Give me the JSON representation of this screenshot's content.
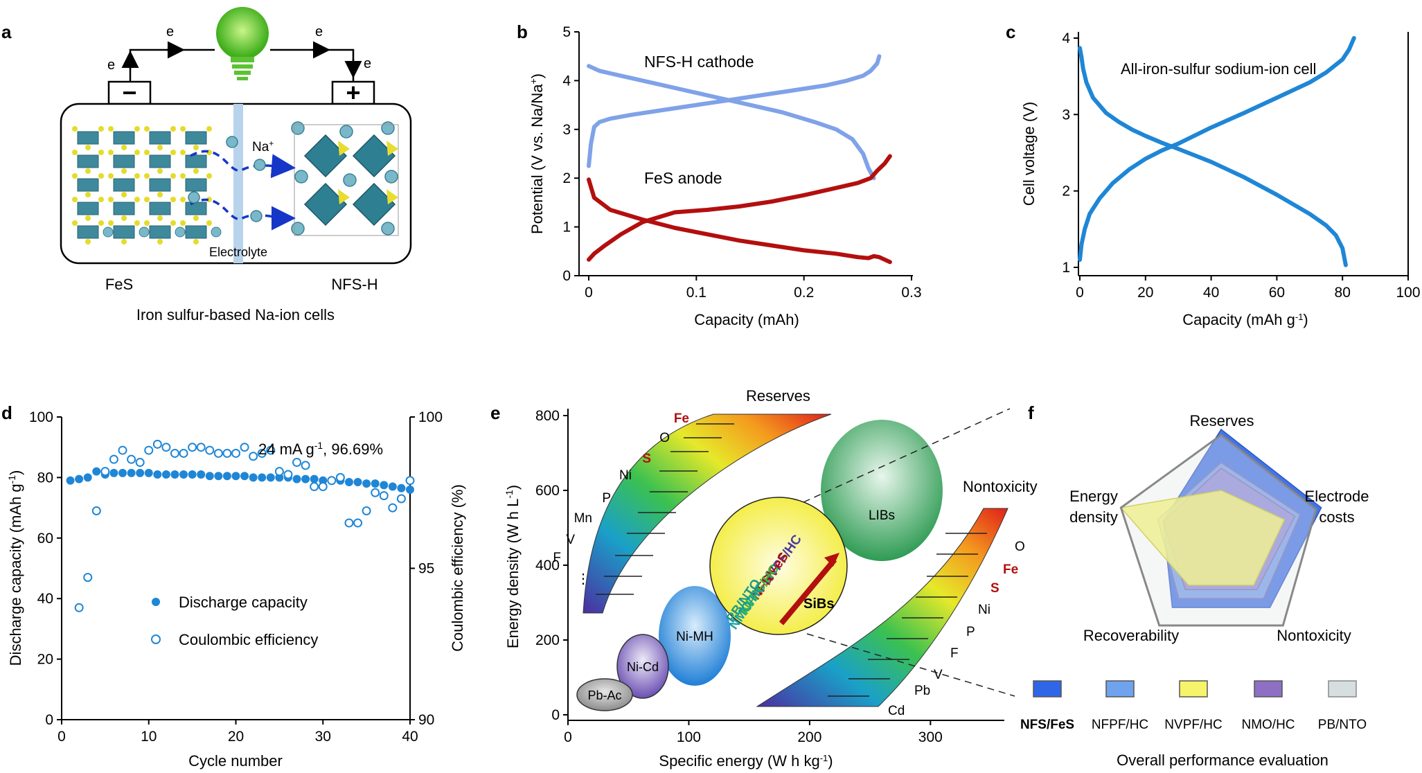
{
  "colors": {
    "cathode": "#7fa2e8",
    "anode": "#b30f0f",
    "cell": "#1f86d6",
    "discharge": "#1f86d6",
    "title_red": "#b30f0f"
  },
  "panel_a": {
    "label": "a",
    "electron": "e",
    "minus": "−",
    "plus": "+",
    "ion": "Na",
    "electrolyte": "Electrolyte",
    "left": "FeS",
    "right": "NFS-H",
    "caption": "Iron sulfur-based Na-ion cells"
  },
  "panel_b": {
    "label": "b",
    "cathode_label": "NFS-H cathode",
    "anode_label": "FeS anode"
  },
  "panel_c": {
    "label": "c",
    "title": "All-iron-sulfur sodium-ion cell"
  },
  "panel_d": {
    "label": "d",
    "annotation": "24 mA g",
    "annotation_sup": "-1",
    "annotation_rest": ", 96.69%",
    "legend_discharge": "Discharge capacity",
    "legend_ce": "Coulombic efficiency"
  },
  "panel_e": {
    "label": "e",
    "reserves": "Reserves",
    "nontoxicity": "Nontoxicity",
    "reserves_elements": [
      "Fe",
      "O",
      "S",
      "Ni",
      "P",
      "Mn",
      "V",
      "F"
    ],
    "reserves_ellipsis": "⋮",
    "toxicity_elements": [
      "O",
      "Fe",
      "S",
      "Ni",
      "P",
      "F",
      "V",
      "Pb",
      "Cd"
    ],
    "systems": [
      "LIBs",
      "Ni-MH",
      "Ni-Cd",
      "Pb-Ac"
    ],
    "sibs_label": "SiBs",
    "sibs_list": [
      "NVPF/HC",
      "NFS/FeS",
      "NFPF/HC",
      "NMO/HC",
      "PB/NTO"
    ]
  },
  "panel_f": {
    "label": "f",
    "axes": [
      "Reserves",
      "Electrode costs",
      "Nontoxicity",
      "Recoverability",
      "Energy density"
    ],
    "axis_energy_1": "Energy",
    "axis_energy_2": "density",
    "axis_cost_1": "Electrode",
    "axis_cost_2": "costs",
    "legend": [
      "NFS/FeS",
      "NFPF/HC",
      "NVPF/HC",
      "NMO/HC",
      "PB/NTO"
    ],
    "legend_colors": [
      "#2f66e8",
      "#6fa3ee",
      "#f6f46a",
      "#8d6fc4",
      "#d7dedf"
    ],
    "caption": "Overall performance evaluation"
  },
  "chart_data": [
    {
      "id": "b",
      "type": "line",
      "xlabel": "Capacity (mAh)",
      "ylabel": "Potential (V vs. Na/Na+)",
      "xlim": [
        0,
        0.3
      ],
      "ylim": [
        0,
        5
      ],
      "xticks": [
        "0",
        "0.1",
        "0.2",
        "0.3"
      ],
      "yticks": [
        "0",
        "1",
        "2",
        "3",
        "4",
        "5"
      ],
      "series": [
        {
          "name": "NFS-H cathode",
          "x": [
            0,
            0.002,
            0.005,
            0.01,
            0.02,
            0.04,
            0.07,
            0.1,
            0.13,
            0.16,
            0.19,
            0.22,
            0.24,
            0.255,
            0.262,
            0.268,
            0.27
          ],
          "y": [
            2.25,
            2.7,
            3.05,
            3.15,
            3.22,
            3.3,
            3.4,
            3.5,
            3.6,
            3.7,
            3.8,
            3.9,
            4.0,
            4.1,
            4.2,
            4.35,
            4.5
          ]
        },
        {
          "name": "NFS-H cathode",
          "x": [
            0,
            0.01,
            0.03,
            0.06,
            0.09,
            0.12,
            0.15,
            0.18,
            0.21,
            0.23,
            0.245,
            0.255,
            0.26,
            0.265
          ],
          "y": [
            4.3,
            4.2,
            4.1,
            3.95,
            3.8,
            3.65,
            3.5,
            3.35,
            3.15,
            3.0,
            2.8,
            2.5,
            2.2,
            2.0
          ]
        },
        {
          "name": "FeS anode",
          "x": [
            0,
            0.005,
            0.015,
            0.03,
            0.05,
            0.08,
            0.11,
            0.14,
            0.17,
            0.2,
            0.23,
            0.25,
            0.262,
            0.268,
            0.275,
            0.28
          ],
          "y": [
            0.33,
            0.45,
            0.62,
            0.85,
            1.1,
            1.3,
            1.35,
            1.42,
            1.52,
            1.65,
            1.8,
            1.9,
            2.0,
            2.15,
            2.3,
            2.45
          ]
        },
        {
          "name": "FeS anode",
          "x": [
            0,
            0.005,
            0.02,
            0.05,
            0.08,
            0.11,
            0.14,
            0.17,
            0.2,
            0.23,
            0.25,
            0.26,
            0.265,
            0.27,
            0.28
          ],
          "y": [
            1.97,
            1.6,
            1.35,
            1.15,
            0.98,
            0.85,
            0.72,
            0.62,
            0.52,
            0.45,
            0.38,
            0.36,
            0.4,
            0.38,
            0.28
          ]
        }
      ]
    },
    {
      "id": "c",
      "type": "line",
      "title": "All-iron-sulfur sodium-ion cell",
      "xlabel": "Capacity (mAh g-1)",
      "ylabel": "Cell voltage (V)",
      "xlim": [
        0,
        100
      ],
      "ylim": [
        0.9,
        4.1
      ],
      "xticks": [
        "0",
        "20",
        "40",
        "60",
        "80",
        "100"
      ],
      "yticks": [
        "1",
        "2",
        "3",
        "4"
      ],
      "series": [
        {
          "name": "charge",
          "x": [
            0,
            0.5,
            1.5,
            3,
            6,
            10,
            15,
            20,
            25,
            30,
            40,
            50,
            60,
            70,
            75,
            80,
            82,
            83.5
          ],
          "y": [
            1.1,
            1.3,
            1.5,
            1.7,
            1.9,
            2.1,
            2.28,
            2.42,
            2.53,
            2.62,
            2.83,
            3.02,
            3.22,
            3.42,
            3.55,
            3.72,
            3.85,
            4.0
          ]
        },
        {
          "name": "discharge",
          "x": [
            0,
            0.5,
            1,
            2,
            4,
            8,
            12,
            16,
            20,
            25,
            30,
            40,
            50,
            60,
            70,
            75,
            78,
            80,
            81
          ],
          "y": [
            3.87,
            3.75,
            3.6,
            3.42,
            3.22,
            3.02,
            2.9,
            2.8,
            2.72,
            2.63,
            2.55,
            2.38,
            2.18,
            1.95,
            1.7,
            1.55,
            1.42,
            1.25,
            1.03
          ]
        }
      ]
    },
    {
      "id": "d",
      "type": "scatter",
      "xlabel": "Cycle number",
      "ylabel": "Discharge capacity (mAh g-1)",
      "ylabel_right": "Coulombic efficiency (%)",
      "xlim": [
        0,
        40
      ],
      "ylim": [
        0,
        100
      ],
      "ylim_right": [
        90,
        100
      ],
      "xticks": [
        "0",
        "10",
        "20",
        "30",
        "40"
      ],
      "yticks": [
        "0",
        "20",
        "40",
        "60",
        "80",
        "100"
      ],
      "yticks_right": [
        "90",
        "95",
        "100"
      ],
      "series": [
        {
          "name": "Discharge capacity",
          "axis": "left",
          "x": [
            1,
            2,
            3,
            4,
            5,
            6,
            7,
            8,
            9,
            10,
            11,
            12,
            13,
            14,
            15,
            16,
            17,
            18,
            19,
            20,
            21,
            22,
            23,
            24,
            25,
            26,
            27,
            28,
            29,
            30,
            31,
            32,
            33,
            34,
            35,
            36,
            37,
            38,
            39,
            40
          ],
          "y": [
            79,
            79.5,
            80,
            82,
            81,
            81.5,
            81.5,
            81.5,
            81.5,
            81.5,
            81,
            81,
            81,
            81,
            81,
            81,
            80.5,
            80.5,
            80.5,
            80.5,
            80.5,
            80,
            80,
            80,
            80,
            80,
            79.5,
            79.5,
            79.5,
            79,
            79,
            79,
            78.5,
            78.5,
            78,
            78,
            77.5,
            77,
            76.5,
            76
          ]
        },
        {
          "name": "Coulombic efficiency",
          "axis": "right",
          "x": [
            2,
            3,
            4,
            5,
            6,
            7,
            8,
            9,
            10,
            11,
            12,
            13,
            14,
            15,
            16,
            17,
            18,
            19,
            20,
            21,
            22,
            23,
            24,
            25,
            26,
            27,
            28,
            29,
            30,
            31,
            32,
            33,
            34,
            35,
            36,
            37,
            38,
            39,
            40
          ],
          "y": [
            93.7,
            94.7,
            96.9,
            98.2,
            98.6,
            98.9,
            98.6,
            98.5,
            98.9,
            99.1,
            99.0,
            98.8,
            98.8,
            99.0,
            99.0,
            98.9,
            98.8,
            98.8,
            98.8,
            99.0,
            98.7,
            98.8,
            98.9,
            98.2,
            98.1,
            98.5,
            98.4,
            97.7,
            97.7,
            97.9,
            98.0,
            96.5,
            96.5,
            96.9,
            97.5,
            97.4,
            97.0,
            97.3,
            97.9
          ]
        }
      ]
    },
    {
      "id": "e",
      "type": "scatter",
      "xlabel": "Specific energy (W h kg-1)",
      "ylabel": "Energy density (W h L-1)",
      "xlim": [
        0,
        360
      ],
      "ylim": [
        0,
        800
      ],
      "xticks": [
        "0",
        "100",
        "200",
        "300"
      ],
      "yticks": [
        "0",
        "200",
        "400",
        "600",
        "800"
      ]
    },
    {
      "id": "f",
      "type": "radar",
      "axes": [
        "Reserves",
        "Electrode costs",
        "Nontoxicity",
        "Recoverability",
        "Energy density"
      ],
      "series": [
        {
          "name": "NFS/FeS",
          "values": [
            1.0,
            0.95,
            0.75,
            0.75,
            0.55
          ]
        },
        {
          "name": "NFPF/HC",
          "values": [
            0.7,
            0.75,
            0.65,
            0.65,
            0.6
          ]
        },
        {
          "name": "NVPF/HC",
          "values": [
            0.45,
            0.6,
            0.5,
            0.5,
            0.95
          ]
        },
        {
          "name": "NMO/HC",
          "values": [
            0.65,
            0.7,
            0.55,
            0.55,
            0.55
          ]
        },
        {
          "name": "PB/NTO",
          "values": [
            0.95,
            0.9,
            0.95,
            0.95,
            0.95
          ]
        }
      ]
    }
  ]
}
